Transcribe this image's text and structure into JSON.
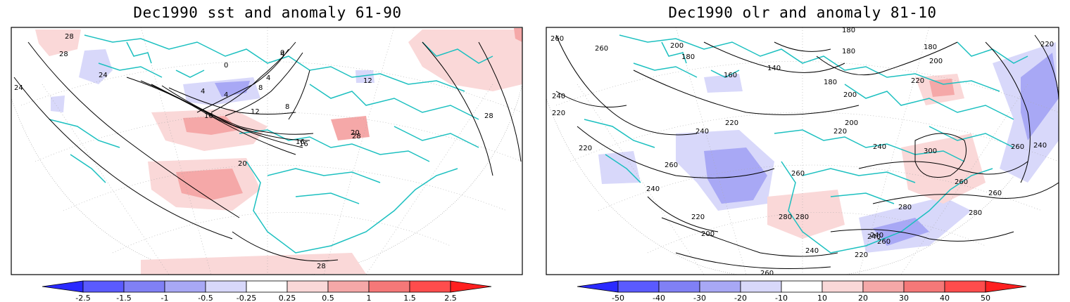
{
  "panels": [
    {
      "title": "Dec1990 sst and anomaly 61-90",
      "contour_labels": [
        "28",
        "28",
        "24",
        "24",
        "0",
        "4",
        "4",
        "8",
        "12",
        "16",
        "16",
        "20",
        "20",
        "28",
        "28",
        "12",
        "4",
        "8",
        "4",
        "0",
        "16",
        "28"
      ],
      "colorbar": {
        "labels": [
          "-2.5",
          "-1.5",
          "-1",
          "-0.5",
          "-0.25",
          "0.25",
          "0.5",
          "1",
          "1.5",
          "2.5"
        ],
        "colors": [
          "#2a2aff",
          "#5a5aff",
          "#8080f5",
          "#a8a8f5",
          "#d8d8fa",
          "#ffffff",
          "#fad8d8",
          "#f5a8a8",
          "#f57878",
          "#ff4c4c",
          "#ff2020"
        ]
      }
    },
    {
      "title": "Dec1990 olr and anomaly 81-10",
      "contour_labels": [
        "260",
        "260",
        "200",
        "180",
        "160",
        "140",
        "180",
        "180",
        "180",
        "200",
        "180",
        "220",
        "200",
        "240",
        "220",
        "220",
        "220",
        "240",
        "220",
        "200",
        "240",
        "220",
        "260",
        "240",
        "260",
        "240",
        "260",
        "300",
        "280",
        "260",
        "280",
        "280",
        "280",
        "220",
        "200",
        "240",
        "260",
        "240",
        "220",
        "240",
        "260",
        "260"
      ],
      "colorbar": {
        "labels": [
          "-50",
          "-40",
          "-30",
          "-20",
          "-10",
          "10",
          "20",
          "30",
          "40",
          "50"
        ],
        "colors": [
          "#2a2aff",
          "#5a5aff",
          "#8080f5",
          "#a8a8f5",
          "#d8d8fa",
          "#ffffff",
          "#fad8d8",
          "#f5a8a8",
          "#f57878",
          "#ff4c4c",
          "#ff2020"
        ]
      }
    }
  ]
}
